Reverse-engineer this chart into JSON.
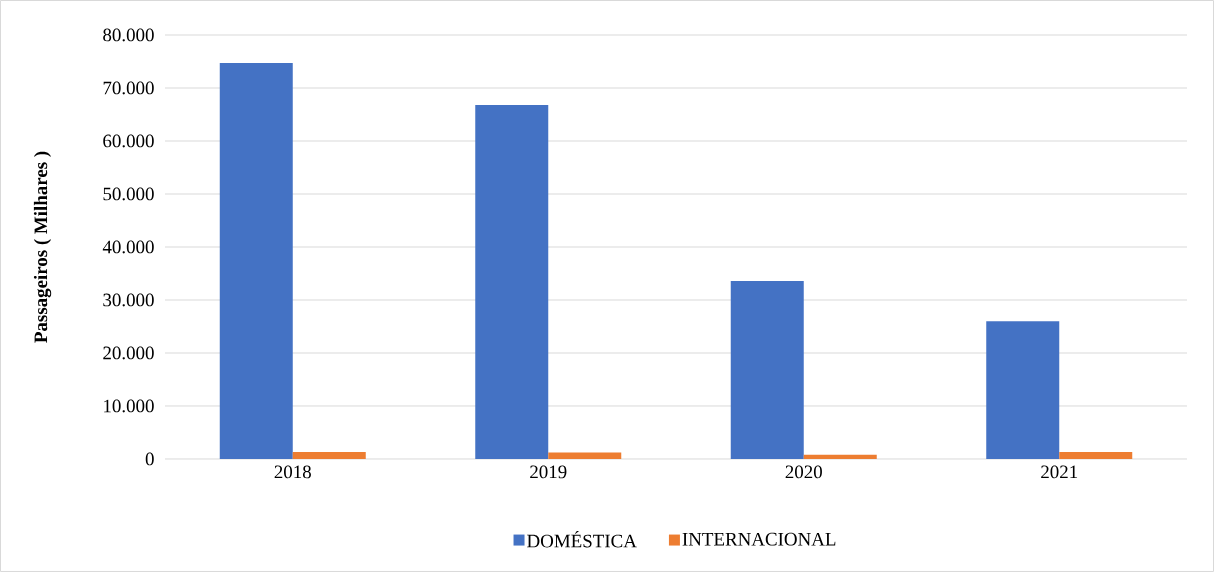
{
  "chart_data": {
    "type": "bar",
    "ylabel": "Passageiros ( Milhares )",
    "categories": [
      "2018",
      "2019",
      "2020",
      "2021"
    ],
    "series": [
      {
        "name": "DOMÉSTICA",
        "color": "#4472c4",
        "values": [
          74700,
          66800,
          33600,
          26000
        ]
      },
      {
        "name": "INTERNACIONAL",
        "color": "#ed7d31",
        "values": [
          1300,
          1200,
          800,
          1300
        ]
      }
    ],
    "ylim": [
      0,
      80000
    ],
    "yticks": [
      {
        "value": 0,
        "label": "0"
      },
      {
        "value": 10000,
        "label": "10.000"
      },
      {
        "value": 20000,
        "label": "20.000"
      },
      {
        "value": 30000,
        "label": "30.000"
      },
      {
        "value": 40000,
        "label": "40.000"
      },
      {
        "value": 50000,
        "label": "50.000"
      },
      {
        "value": 60000,
        "label": "60.000"
      },
      {
        "value": 70000,
        "label": "70.000"
      },
      {
        "value": 80000,
        "label": "80.000"
      }
    ],
    "grid": "y",
    "legend": "bottom"
  }
}
